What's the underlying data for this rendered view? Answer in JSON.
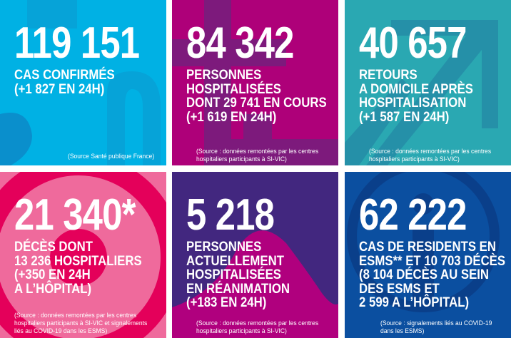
{
  "colors": {
    "cyan": "#00b1e4",
    "magenta": "#ae0079",
    "teal": "#2aa8b2",
    "pink": "#ef6a9c",
    "purple": "#42277f",
    "blue": "#0b4fa0"
  },
  "panels": [
    {
      "number": "119 151",
      "lines": [
        "CAS CONFIRMÉS",
        "(+1 827 EN 24H)"
      ],
      "source": [
        "(Source Santé publique France)"
      ]
    },
    {
      "number": "84 342",
      "lines": [
        "PERSONNES",
        "HOSPITALISÉES",
        "DONT 29 741 EN COURS",
        "(+1 619 EN 24H)"
      ],
      "source": [
        "(Source : données remontées par les centres",
        "hospitaliers participants à SI-VIC)"
      ]
    },
    {
      "number": "40 657",
      "lines": [
        "RETOURS",
        "A DOMICILE APRÈS",
        "HOSPITALISATION",
        "(+1 587 EN 24H)"
      ],
      "source": [
        "(Source : données remontées par les centres",
        "hospitaliers participants à SI-VIC)"
      ]
    },
    {
      "number": "21 340*",
      "lines": [
        "DÉCÈS DONT",
        "13 236 HOSPITALIERS",
        "(+350 EN 24H",
        "A L’HÔPITAL)"
      ],
      "source": [
        "(Source : données remontées par les centres",
        "hospitaliers participants à SI-VIC et signalements",
        "liés au COVID-19 dans les ESMS)"
      ]
    },
    {
      "number": "5 218",
      "lines": [
        "PERSONNES",
        "ACTUELLEMENT",
        "HOSPITALISÉES",
        "EN RÉANIMATION",
        "(+183 EN 24H)"
      ],
      "source": [
        "(Source : données remontées par les centres",
        "hospitaliers participants à SI-VIC)"
      ]
    },
    {
      "number": "62 222",
      "lines": [
        "CAS DE RESIDENTS EN",
        "ESMS** ET 10 703 DÉCÈS",
        "(8 104 DÉCÈS AU SEIN",
        "DES ESMS ET",
        "2 599 A L’HÔPITAL)"
      ],
      "source": [
        "(Source : signalements liés au COVID-19",
        "dans les ESMS)"
      ]
    }
  ]
}
